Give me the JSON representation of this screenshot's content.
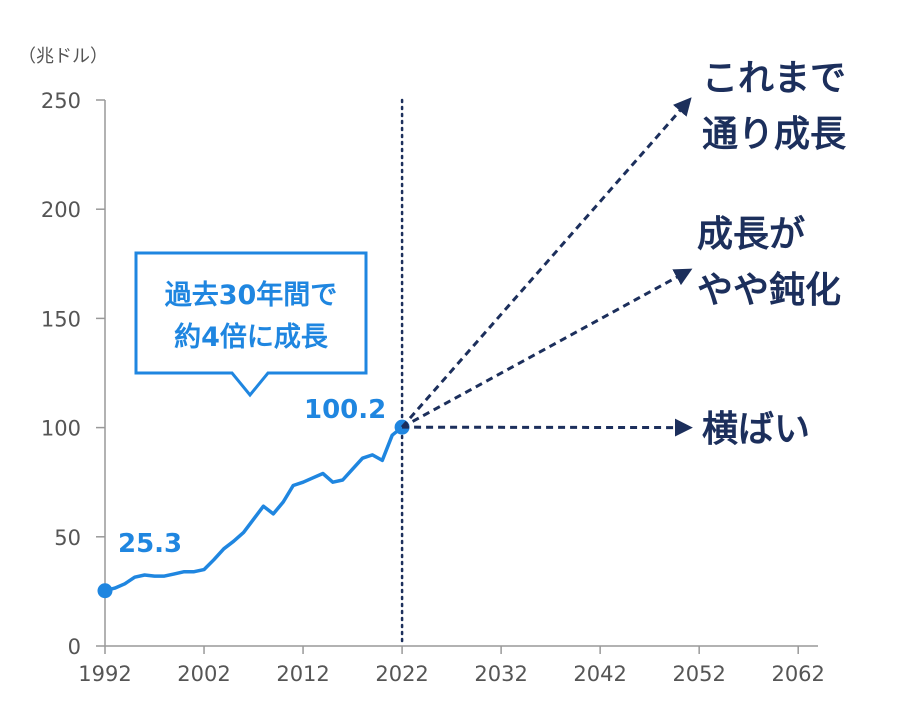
{
  "chart_data": {
    "type": "line",
    "unit_label": "（兆ドル）",
    "x_ticks": [
      1992,
      2002,
      2012,
      2022,
      2032,
      2042,
      2052,
      2062
    ],
    "y_ticks": [
      0,
      50,
      100,
      150,
      200,
      250
    ],
    "xlim": [
      1992,
      2064
    ],
    "ylim": [
      0,
      250
    ],
    "grid": false,
    "series": [
      {
        "values": [
          [
            1992,
            25.3
          ],
          [
            1993,
            26.5
          ],
          [
            1994,
            28.5
          ],
          [
            1995,
            31.5
          ],
          [
            1996,
            32.5
          ],
          [
            1997,
            32
          ],
          [
            1998,
            32
          ],
          [
            1999,
            33
          ],
          [
            2000,
            34
          ],
          [
            2001,
            34
          ],
          [
            2002,
            35
          ],
          [
            2003,
            39.5
          ],
          [
            2004,
            44.5
          ],
          [
            2005,
            48
          ],
          [
            2006,
            52
          ],
          [
            2007,
            58
          ],
          [
            2008,
            64
          ],
          [
            2009,
            60.5
          ],
          [
            2010,
            66
          ],
          [
            2011,
            73.5
          ],
          [
            2012,
            75
          ],
          [
            2013,
            77
          ],
          [
            2014,
            79
          ],
          [
            2015,
            75
          ],
          [
            2016,
            76
          ],
          [
            2017,
            81
          ],
          [
            2018,
            86
          ],
          [
            2019,
            87.5
          ],
          [
            2020,
            85
          ],
          [
            2021,
            96.5
          ],
          [
            2022,
            100.2
          ]
        ],
        "color": "#1f86e0"
      }
    ],
    "annotations": {
      "start_value_label": "25.3",
      "end_value_label": "100.2",
      "callout_line1": "過去30年間で",
      "callout_line2": "約4倍に成長"
    },
    "divider_year": 2022,
    "scenarios": [
      {
        "line1": "これまで",
        "line2": "通り成長",
        "end": [
          2051,
          250
        ]
      },
      {
        "line1": "成長が",
        "line2": "やや鈍化",
        "end": [
          2051,
          172
        ]
      },
      {
        "line1": "横ばい",
        "line2": "",
        "end": [
          2051,
          100
        ]
      }
    ],
    "colors": {
      "line": "#1f86e0",
      "projection": "#1c2f5c",
      "axis": "#999999",
      "text": "#555555"
    }
  }
}
